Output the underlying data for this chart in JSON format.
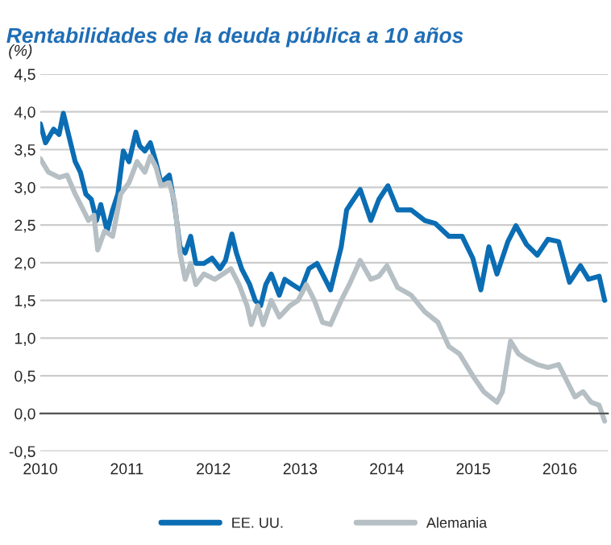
{
  "chart_data": {
    "type": "line",
    "title": "Rentabilidades de la deuda pública a 10 años",
    "ylabel": "(%)",
    "xlim": [
      "2010-01-01",
      "2016-07-22"
    ],
    "xticks": [
      {
        "value": "2010-01-01",
        "label": "2010"
      },
      {
        "value": "2011-01-01",
        "label": "2011"
      },
      {
        "value": "2012-01-01",
        "label": "2012"
      },
      {
        "value": "2013-01-01",
        "label": "2013"
      },
      {
        "value": "2014-01-01",
        "label": "2014"
      },
      {
        "value": "2015-01-01",
        "label": "2015"
      },
      {
        "value": "2016-01-01",
        "label": "2016"
      }
    ],
    "ylim": [
      -0.5,
      4.5
    ],
    "yticks": [
      {
        "value": -0.5,
        "label": "-0,5"
      },
      {
        "value": 0,
        "label": "0,0"
      },
      {
        "value": 0.5,
        "label": "0,5"
      },
      {
        "value": 1,
        "label": "1,0"
      },
      {
        "value": 1.5,
        "label": "1,5"
      },
      {
        "value": 2,
        "label": "2,0"
      },
      {
        "value": 2.5,
        "label": "2,5"
      },
      {
        "value": 3,
        "label": "3,0"
      },
      {
        "value": 3.5,
        "label": "3,5"
      },
      {
        "value": 4,
        "label": "4,0"
      },
      {
        "value": 4.5,
        "label": "4,5"
      }
    ],
    "grid": "y",
    "legend": "bottom",
    "marker": "none",
    "line_style": "solid",
    "series": [
      {
        "name": "EE. UU.",
        "color": "#0b6db3",
        "x": [
          "2010-01-01",
          "2010-01-23",
          "2010-02-26",
          "2010-03-21",
          "2010-04-08",
          "2010-05-06",
          "2010-05-28",
          "2010-06-19",
          "2010-07-12",
          "2010-08-04",
          "2010-08-26",
          "2010-09-13",
          "2010-10-10",
          "2010-11-02",
          "2010-11-24",
          "2010-12-17",
          "2011-01-10",
          "2011-02-08",
          "2011-02-24",
          "2011-03-18",
          "2011-04-10",
          "2011-05-03",
          "2011-05-25",
          "2011-06-29",
          "2011-07-21",
          "2011-08-13",
          "2011-09-04",
          "2011-09-27",
          "2011-10-19",
          "2011-11-22",
          "2011-12-26",
          "2012-01-29",
          "2012-02-21",
          "2012-03-19",
          "2012-04-07",
          "2012-04-29",
          "2012-06-02",
          "2012-06-25",
          "2012-07-18",
          "2012-08-09",
          "2012-09-01",
          "2012-10-05",
          "2012-10-28",
          "2012-11-30",
          "2013-01-04",
          "2013-02-07",
          "2013-03-13",
          "2013-04-05",
          "2013-05-09",
          "2013-06-23",
          "2013-07-16",
          "2013-09-11",
          "2013-10-26",
          "2013-11-29",
          "2014-01-06",
          "2014-02-16",
          "2014-04-14",
          "2014-06-10",
          "2014-07-25",
          "2014-09-20",
          "2014-11-15",
          "2014-12-30",
          "2015-02-02",
          "2015-03-08",
          "2015-04-11",
          "2015-05-27",
          "2015-06-30",
          "2015-08-14",
          "2015-09-28",
          "2015-11-12",
          "2015-12-27",
          "2016-02-11",
          "2016-03-28",
          "2016-05-01",
          "2016-06-15",
          "2016-07-08"
        ],
        "values": [
          3.84,
          3.59,
          3.77,
          3.7,
          3.98,
          3.62,
          3.34,
          3.2,
          2.91,
          2.84,
          2.56,
          2.77,
          2.42,
          2.7,
          2.91,
          3.48,
          3.34,
          3.73,
          3.55,
          3.48,
          3.59,
          3.34,
          3.06,
          3.16,
          2.77,
          2.21,
          2.13,
          2.35,
          1.99,
          1.99,
          2.06,
          1.92,
          2.03,
          2.38,
          2.13,
          1.92,
          1.71,
          1.5,
          1.43,
          1.71,
          1.85,
          1.57,
          1.78,
          1.71,
          1.64,
          1.92,
          1.99,
          1.85,
          1.64,
          2.21,
          2.7,
          2.97,
          2.56,
          2.84,
          3.02,
          2.7,
          2.7,
          2.56,
          2.52,
          2.35,
          2.35,
          2.06,
          1.64,
          2.21,
          1.85,
          2.28,
          2.49,
          2.24,
          2.1,
          2.31,
          2.28,
          1.74,
          1.96,
          1.78,
          1.82,
          1.5
        ]
      },
      {
        "name": "Alemania",
        "color": "#b5bfc4",
        "x": [
          "2010-01-01",
          "2010-02-04",
          "2010-03-21",
          "2010-04-24",
          "2010-05-28",
          "2010-07-01",
          "2010-07-23",
          "2010-08-15",
          "2010-08-31",
          "2010-09-29",
          "2010-11-02",
          "2010-12-06",
          "2011-01-10",
          "2011-02-13",
          "2011-03-18",
          "2011-04-10",
          "2011-05-03",
          "2011-05-25",
          "2011-06-29",
          "2011-07-21",
          "2011-08-13",
          "2011-09-04",
          "2011-09-27",
          "2011-10-19",
          "2011-11-22",
          "2012-01-07",
          "2012-02-10",
          "2012-03-15",
          "2012-04-18",
          "2012-05-22",
          "2012-06-09",
          "2012-07-06",
          "2012-07-29",
          "2012-09-01",
          "2012-10-05",
          "2012-11-19",
          "2012-12-23",
          "2013-01-27",
          "2013-03-02",
          "2013-04-05",
          "2013-05-09",
          "2013-06-23",
          "2013-07-27",
          "2013-09-11",
          "2013-10-26",
          "2013-11-29",
          "2014-01-02",
          "2014-02-16",
          "2014-04-14",
          "2014-06-10",
          "2014-08-05",
          "2014-09-20",
          "2014-11-04",
          "2014-12-30",
          "2015-02-14",
          "2015-04-11",
          "2015-05-04",
          "2015-06-07",
          "2015-07-11",
          "2015-08-14",
          "2015-09-28",
          "2015-11-12",
          "2015-12-27",
          "2016-01-31",
          "2016-03-05",
          "2016-04-08",
          "2016-05-12",
          "2016-06-15",
          "2016-07-08"
        ],
        "values": [
          3.38,
          3.2,
          3.13,
          3.16,
          2.91,
          2.7,
          2.56,
          2.63,
          2.17,
          2.42,
          2.35,
          2.91,
          3.06,
          3.34,
          3.2,
          3.41,
          3.27,
          3.02,
          3.06,
          2.81,
          2.13,
          1.78,
          1.99,
          1.71,
          1.85,
          1.78,
          1.85,
          1.92,
          1.71,
          1.43,
          1.18,
          1.43,
          1.18,
          1.5,
          1.28,
          1.43,
          1.5,
          1.71,
          1.5,
          1.21,
          1.18,
          1.5,
          1.71,
          2.03,
          1.78,
          1.82,
          1.96,
          1.67,
          1.57,
          1.35,
          1.21,
          0.89,
          0.79,
          0.5,
          0.29,
          0.15,
          0.29,
          0.96,
          0.79,
          0.72,
          0.65,
          0.61,
          0.65,
          0.43,
          0.22,
          0.29,
          0.15,
          0.11,
          -0.1
        ]
      }
    ]
  }
}
